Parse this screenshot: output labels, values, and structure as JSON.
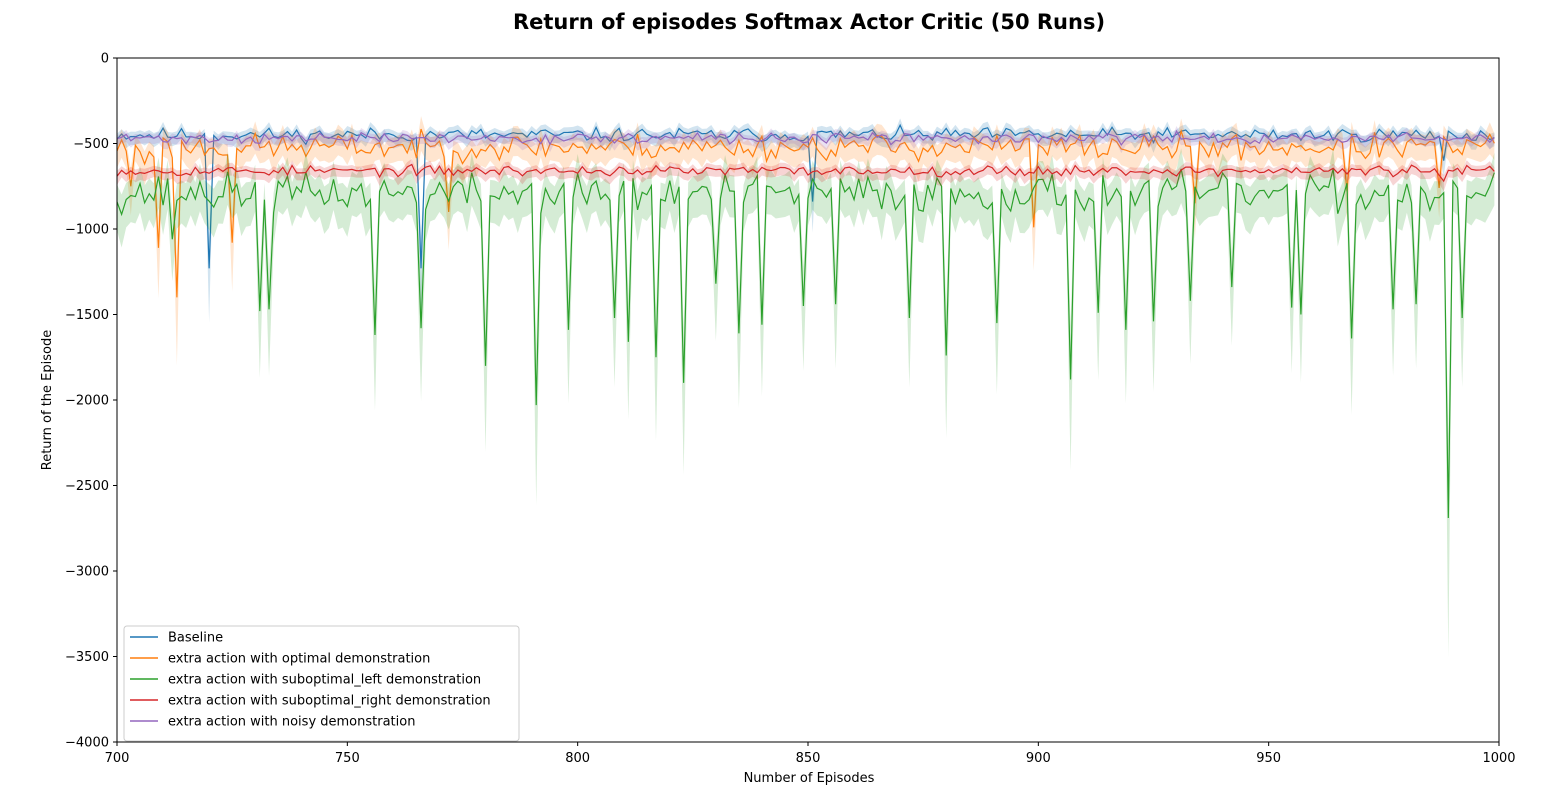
{
  "chart_data": {
    "type": "line",
    "title": "Return of episodes Softmax Actor Critic (50 Runs)",
    "xlabel": "Number of Episodes",
    "ylabel": "Return of the Episode",
    "xlim": [
      700,
      1000
    ],
    "ylim": [
      -4000,
      0
    ],
    "xticks": [
      700,
      750,
      800,
      850,
      900,
      950,
      1000
    ],
    "yticks": [
      0,
      -500,
      -1000,
      -1500,
      -2000,
      -2500,
      -3000,
      -3500,
      -4000
    ],
    "ytick_labels": [
      "0",
      "−500",
      "−1000",
      "−1500",
      "−2000",
      "−2500",
      "−3000",
      "−3500",
      "−4000"
    ],
    "grid": false,
    "legend_position": "lower-left",
    "shaded_band": "variance band around each mean line",
    "series": [
      {
        "name": "Baseline",
        "color": "#1f77b4",
        "base": -450,
        "noise": 40,
        "band": 45,
        "seed": 11,
        "dips": [
          [
            720,
            -1230
          ],
          [
            766,
            -1230
          ],
          [
            851,
            -840
          ],
          [
            988,
            -600
          ]
        ]
      },
      {
        "name": "extra action with optimal demonstration",
        "color": "#ff7f0e",
        "base": -520,
        "noise": 75,
        "band": 90,
        "seed": 23,
        "dips": [
          [
            703,
            -750
          ],
          [
            706,
            -620
          ],
          [
            709,
            -1110
          ],
          [
            713,
            -1400
          ],
          [
            725,
            -1080
          ],
          [
            772,
            -900
          ],
          [
            899,
            -990
          ],
          [
            934,
            -850
          ],
          [
            967,
            -780
          ],
          [
            987,
            -760
          ]
        ]
      },
      {
        "name": "extra action with suboptimal_left demonstration",
        "color": "#2ca02c",
        "base": -790,
        "noise": 110,
        "band": 150,
        "seed": 37,
        "dips": [
          [
            712,
            -1060
          ],
          [
            731,
            -1480
          ],
          [
            733,
            -1470
          ],
          [
            756,
            -1620
          ],
          [
            766,
            -1580
          ],
          [
            780,
            -1800
          ],
          [
            791,
            -2030
          ],
          [
            798,
            -1590
          ],
          [
            808,
            -1520
          ],
          [
            811,
            -1660
          ],
          [
            817,
            -1750
          ],
          [
            823,
            -1900
          ],
          [
            830,
            -1320
          ],
          [
            835,
            -1610
          ],
          [
            840,
            -1560
          ],
          [
            849,
            -1450
          ],
          [
            856,
            -1440
          ],
          [
            872,
            -1520
          ],
          [
            880,
            -1740
          ],
          [
            891,
            -1550
          ],
          [
            907,
            -1880
          ],
          [
            913,
            -1490
          ],
          [
            919,
            -1590
          ],
          [
            925,
            -1540
          ],
          [
            933,
            -1420
          ],
          [
            942,
            -1340
          ],
          [
            955,
            -1460
          ],
          [
            957,
            -1500
          ],
          [
            968,
            -1640
          ],
          [
            977,
            -1470
          ],
          [
            982,
            -1440
          ],
          [
            989,
            -2690
          ],
          [
            992,
            -1520
          ]
        ]
      },
      {
        "name": "extra action with suboptimal_right demonstration",
        "color": "#d62728",
        "base": -660,
        "noise": 30,
        "band": 40,
        "seed": 53,
        "dips": [
          [
            988,
            -720
          ]
        ]
      },
      {
        "name": "extra action with noisy demonstration",
        "color": "#9467bd",
        "base": -470,
        "noise": 30,
        "band": 35,
        "seed": 71,
        "dips": []
      }
    ]
  }
}
